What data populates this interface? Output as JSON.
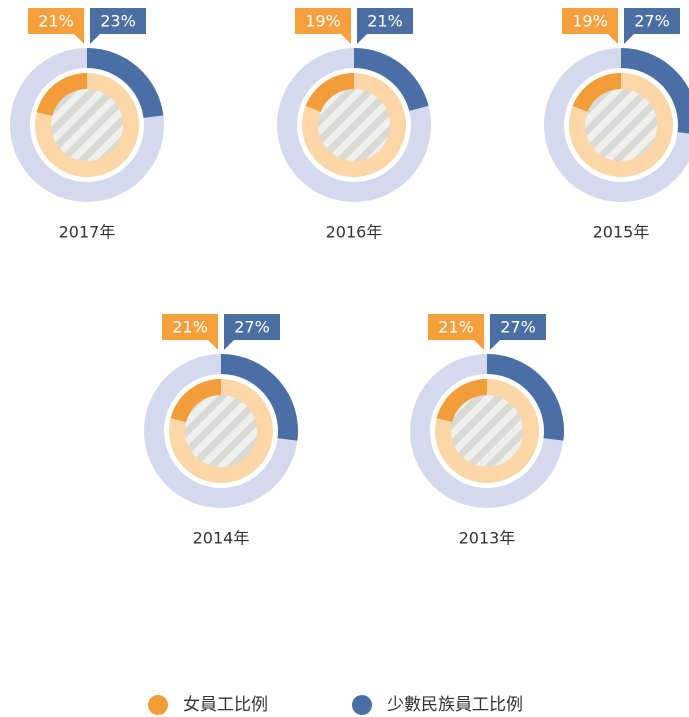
{
  "chart_data": {
    "type": "donut",
    "categories": [
      "2017年",
      "2016年",
      "2015年",
      "2014年",
      "2013年"
    ],
    "series": [
      {
        "name": "女員工比例",
        "color": "#f39c3a",
        "values": [
          21,
          19,
          19,
          21,
          21
        ],
        "value_labels": [
          "21%",
          "19%",
          "19%",
          "21%",
          "21%"
        ]
      },
      {
        "name": "少數民族員工比例",
        "color": "#4a6fa5",
        "values": [
          23,
          21,
          27,
          27,
          27
        ],
        "value_labels": [
          "23%",
          "21%",
          "27%",
          "27%",
          "27%"
        ]
      }
    ]
  }
}
